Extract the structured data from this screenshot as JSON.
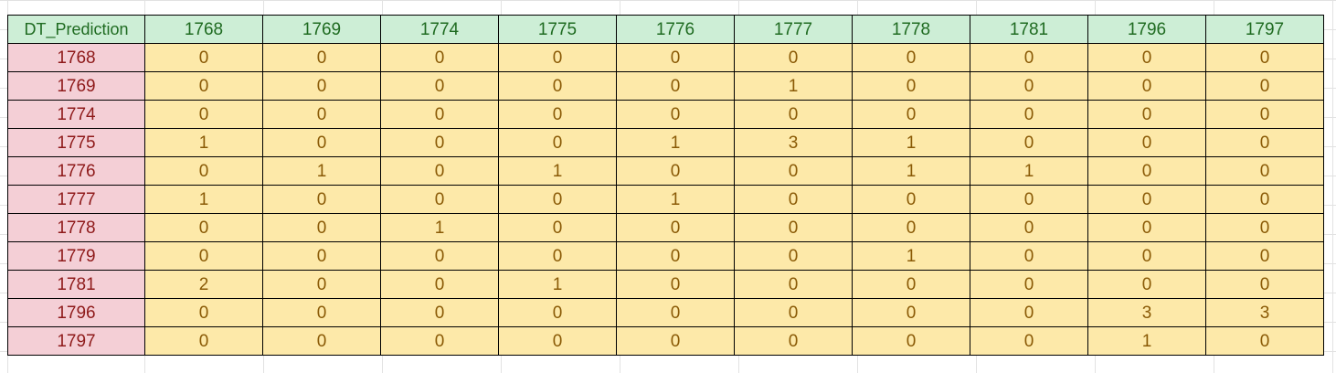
{
  "table": {
    "corner_label": "DT_Prediction",
    "columns": [
      "1768",
      "1769",
      "1774",
      "1775",
      "1776",
      "1777",
      "1778",
      "1781",
      "1796",
      "1797"
    ],
    "rows": [
      {
        "label": "1768",
        "values": [
          "0",
          "0",
          "0",
          "0",
          "0",
          "0",
          "0",
          "0",
          "0",
          "0"
        ]
      },
      {
        "label": "1769",
        "values": [
          "0",
          "0",
          "0",
          "0",
          "0",
          "1",
          "0",
          "0",
          "0",
          "0"
        ]
      },
      {
        "label": "1774",
        "values": [
          "0",
          "0",
          "0",
          "0",
          "0",
          "0",
          "0",
          "0",
          "0",
          "0"
        ]
      },
      {
        "label": "1775",
        "values": [
          "1",
          "0",
          "0",
          "0",
          "1",
          "3",
          "1",
          "0",
          "0",
          "0"
        ]
      },
      {
        "label": "1776",
        "values": [
          "0",
          "1",
          "0",
          "1",
          "0",
          "0",
          "1",
          "1",
          "0",
          "0"
        ]
      },
      {
        "label": "1777",
        "values": [
          "1",
          "0",
          "0",
          "0",
          "1",
          "0",
          "0",
          "0",
          "0",
          "0"
        ]
      },
      {
        "label": "1778",
        "values": [
          "0",
          "0",
          "1",
          "0",
          "0",
          "0",
          "0",
          "0",
          "0",
          "0"
        ]
      },
      {
        "label": "1779",
        "values": [
          "0",
          "0",
          "0",
          "0",
          "0",
          "0",
          "1",
          "0",
          "0",
          "0"
        ]
      },
      {
        "label": "1781",
        "values": [
          "2",
          "0",
          "0",
          "1",
          "0",
          "0",
          "0",
          "0",
          "0",
          "0"
        ]
      },
      {
        "label": "1796",
        "values": [
          "0",
          "0",
          "0",
          "0",
          "0",
          "0",
          "0",
          "0",
          "3",
          "3"
        ]
      },
      {
        "label": "1797",
        "values": [
          "0",
          "0",
          "0",
          "0",
          "0",
          "0",
          "0",
          "0",
          "1",
          "0"
        ]
      }
    ]
  },
  "colors": {
    "header_fill": "#cdeed6",
    "header_text": "#1f6b21",
    "row_header_fill": "#f4cfd6",
    "row_header_text": "#8e1a1a",
    "cell_fill": "#fde9a9",
    "cell_text": "#8a5a06",
    "gridline": "#e2e2e2"
  }
}
